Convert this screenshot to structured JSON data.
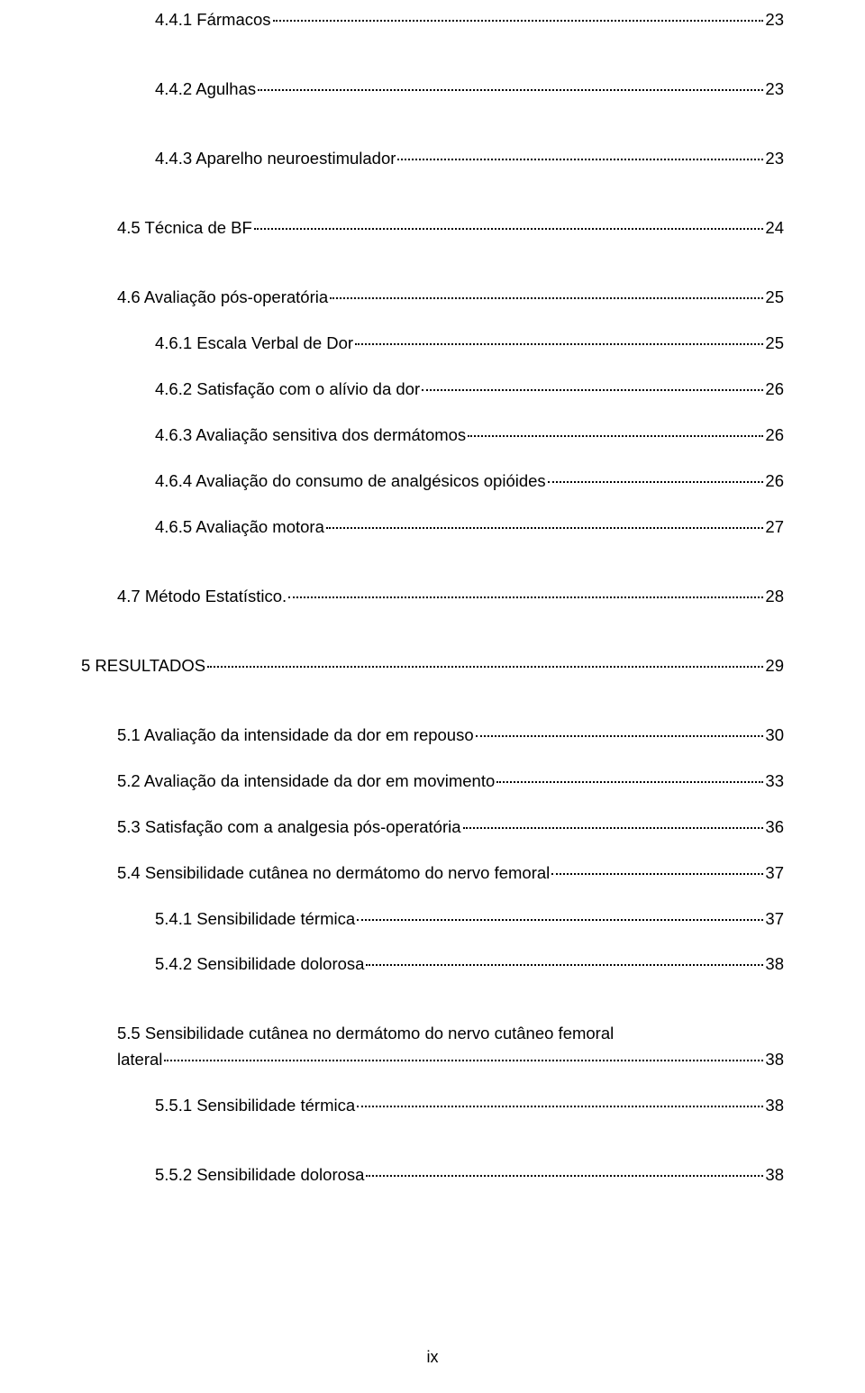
{
  "toc": [
    {
      "indent": 2,
      "label": "4.4.1   Fármacos",
      "page": "23",
      "gap": "sm"
    },
    {
      "indent": 2,
      "label": "4.4.2   Agulhas",
      "page": "23",
      "gap": "lg"
    },
    {
      "indent": 2,
      "label": "4.4.3   Aparelho neuroestimulador",
      "page": "23",
      "gap": "lg"
    },
    {
      "indent": 1,
      "label": "4.5   Técnica de BF",
      "page": "24",
      "gap": "lg"
    },
    {
      "indent": 1,
      "label": "4.6   Avaliação pós-operatória",
      "page": "25",
      "gap": "lg"
    },
    {
      "indent": 2,
      "label": "4.6.1   Escala Verbal de Dor",
      "page": "25",
      "gap": "sm"
    },
    {
      "indent": 2,
      "label": "4.6.2   Satisfação com o alívio da dor",
      "page": "26",
      "gap": "sm"
    },
    {
      "indent": 2,
      "label": "4.6.3   Avaliação sensitiva dos dermátomos",
      "page": "26",
      "gap": "sm"
    },
    {
      "indent": 2,
      "label": "4.6.4   Avaliação do consumo de analgésicos opióides",
      "page": "26",
      "gap": "sm"
    },
    {
      "indent": 2,
      "label": "4.6.5   Avaliação motora",
      "page": "27",
      "gap": "sm"
    },
    {
      "indent": 1,
      "label": "4.7   Método Estatístico. ",
      "page": "28",
      "gap": "lg"
    },
    {
      "indent": 0,
      "label": "5    RESULTADOS",
      "page": "29",
      "gap": "lg"
    },
    {
      "indent": 1,
      "label": "5.1   Avaliação da intensidade da dor em repouso",
      "page": "30",
      "gap": "lg"
    },
    {
      "indent": 1,
      "label": "5.2   Avaliação da intensidade da dor em movimento",
      "page": "33",
      "gap": "sm"
    },
    {
      "indent": 1,
      "label": "5.3   Satisfação com a analgesia pós-operatória",
      "page": "36",
      "gap": "sm"
    },
    {
      "indent": 1,
      "label": "5.4   Sensibilidade cutânea no dermátomo do nervo femoral",
      "page": "37",
      "gap": "sm"
    },
    {
      "indent": 2,
      "label": "5.4.1   Sensibilidade térmica",
      "page": "37",
      "gap": "sm"
    },
    {
      "indent": 2,
      "label": "5.4.2   Sensibilidade dolorosa",
      "page": "38",
      "gap": "sm"
    }
  ],
  "wrapped": {
    "indent": 1,
    "line1": "5.5   Sensibilidade  cutânea  no  dermátomo  do  nervo  cutâneo  femoral",
    "line2_label": "lateral",
    "line2_page": "38"
  },
  "tail": [
    {
      "indent": 2,
      "label": "5.5.1   Sensibilidade térmica",
      "page": "38",
      "gap": "sm"
    },
    {
      "indent": 2,
      "label": "5.5.2   Sensibilidade dolorosa",
      "page": "38",
      "gap": "lg"
    }
  ],
  "pageNumber": "ix",
  "style": {
    "background_color": "#ffffff",
    "text_color": "#000000",
    "font_family": "Arial",
    "font_size_pt": 14,
    "leader_style": "dotted"
  }
}
